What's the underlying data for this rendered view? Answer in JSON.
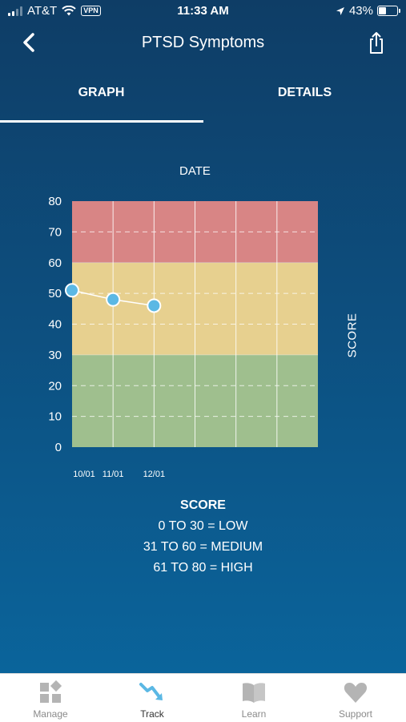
{
  "status_bar": {
    "carrier": "AT&T",
    "vpn": "VPN",
    "time": "11:33 AM",
    "battery": "43%",
    "battery_level": 0.43
  },
  "nav": {
    "title": "PTSD Symptoms"
  },
  "tabs": {
    "graph": "GRAPH",
    "details": "DETAILS",
    "active": "graph"
  },
  "chart_data": {
    "type": "line",
    "title": "DATE",
    "ylabel": "SCORE",
    "ylim": [
      0,
      80
    ],
    "yticks": [
      0,
      10,
      20,
      30,
      40,
      50,
      60,
      70,
      80
    ],
    "x": [
      "10/01",
      "11/01",
      "12/01"
    ],
    "values": [
      51,
      48,
      46
    ],
    "columns": 6,
    "bands": [
      {
        "from": 0,
        "to": 30,
        "color": "#9fbf8e"
      },
      {
        "from": 30,
        "to": 60,
        "color": "#e7d08f"
      },
      {
        "from": 60,
        "to": 80,
        "color": "#d88585"
      }
    ],
    "point_color": "#5bb8e4"
  },
  "legend": {
    "title": "SCORE",
    "lines": [
      "0 TO 30 = LOW",
      "31 TO 60 = MEDIUM",
      "61 TO 80 = HIGH"
    ]
  },
  "tab_bar": {
    "items": [
      {
        "label": "Manage",
        "icon": "manage-icon"
      },
      {
        "label": "Track",
        "icon": "track-icon"
      },
      {
        "label": "Learn",
        "icon": "learn-icon"
      },
      {
        "label": "Support",
        "icon": "support-icon"
      }
    ],
    "active": "Track",
    "active_color": "#5bb8e4",
    "inactive_color": "#b4b4b4"
  }
}
